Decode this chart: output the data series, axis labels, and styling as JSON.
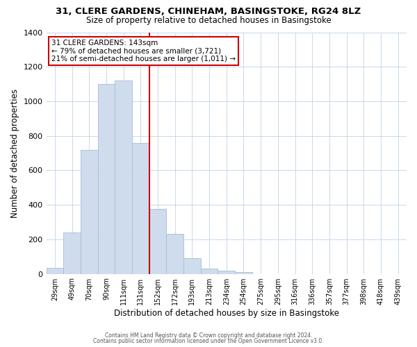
{
  "title_line1": "31, CLERE GARDENS, CHINEHAM, BASINGSTOKE, RG24 8LZ",
  "title_line2": "Size of property relative to detached houses in Basingstoke",
  "xlabel": "Distribution of detached houses by size in Basingstoke",
  "ylabel": "Number of detached properties",
  "bar_labels": [
    "29sqm",
    "49sqm",
    "70sqm",
    "90sqm",
    "111sqm",
    "131sqm",
    "152sqm",
    "172sqm",
    "193sqm",
    "213sqm",
    "234sqm",
    "254sqm",
    "275sqm",
    "295sqm",
    "316sqm",
    "336sqm",
    "357sqm",
    "377sqm",
    "398sqm",
    "418sqm",
    "439sqm"
  ],
  "bar_values": [
    35,
    240,
    720,
    1100,
    1120,
    760,
    375,
    230,
    90,
    30,
    20,
    10,
    0,
    0,
    0,
    0,
    0,
    0,
    0,
    0,
    0
  ],
  "bar_color": "#cfdcee",
  "bar_edge_color": "#a8bdd4",
  "vline_color": "#cc0000",
  "annotation_title": "31 CLERE GARDENS: 143sqm",
  "annotation_line1": "← 79% of detached houses are smaller (3,721)",
  "annotation_line2": "21% of semi-detached houses are larger (1,011) →",
  "annotation_box_edge": "#cc0000",
  "ylim": [
    0,
    1400
  ],
  "yticks": [
    0,
    200,
    400,
    600,
    800,
    1000,
    1200,
    1400
  ],
  "footer_line1": "Contains HM Land Registry data © Crown copyright and database right 2024.",
  "footer_line2": "Contains public sector information licensed under the Open Government Licence v3.0."
}
